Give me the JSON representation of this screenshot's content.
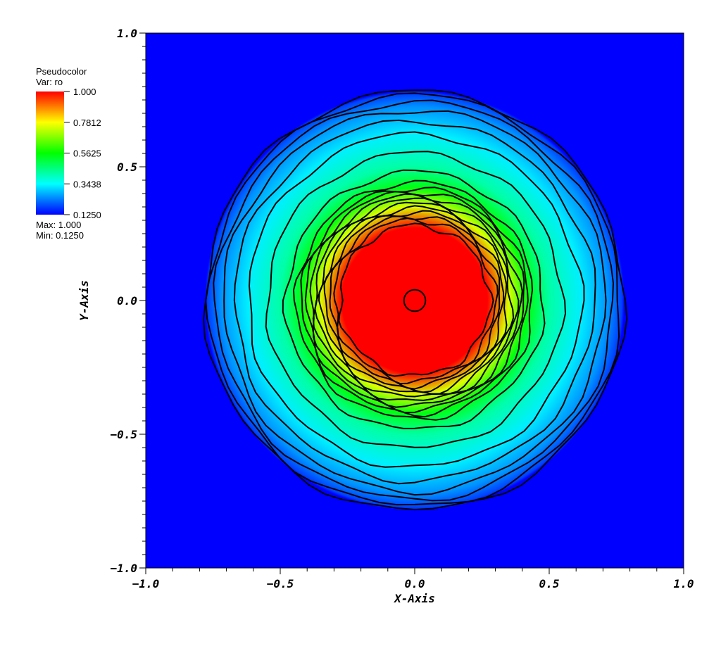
{
  "chart_data": {
    "type": "heatmap",
    "plot_kind": "pseudocolor-with-contours",
    "xlabel": "X-Axis",
    "ylabel": "Y-Axis",
    "xlim": [
      -1.0,
      1.0
    ],
    "ylim": [
      -1.0,
      1.0
    ],
    "x_ticks": [
      "-1.0",
      "-0.5",
      "0.0",
      "0.5",
      "1.0"
    ],
    "y_ticks": [
      "1.0",
      "0.5",
      "0.0",
      "-0.5",
      "-1.0"
    ],
    "field": {
      "shape": "radial",
      "center": [
        0.0,
        0.0
      ],
      "value_at_center": 1.0,
      "value_outside": 0.125,
      "radial_profile": [
        {
          "r": 0.0,
          "value": 1.0
        },
        {
          "r": 0.27,
          "value": 1.0
        },
        {
          "r": 0.35,
          "value": 0.75
        },
        {
          "r": 0.42,
          "value": 0.55
        },
        {
          "r": 0.5,
          "value": 0.42
        },
        {
          "r": 0.62,
          "value": 0.33
        },
        {
          "r": 0.72,
          "value": 0.25
        },
        {
          "r": 0.77,
          "value": 0.18
        },
        {
          "r": 0.78,
          "value": 0.125
        },
        {
          "r": 1.5,
          "value": 0.125
        }
      ],
      "contour_radii": [
        0.04,
        0.28,
        0.3,
        0.315,
        0.33,
        0.345,
        0.36,
        0.375,
        0.39,
        0.405,
        0.42,
        0.44,
        0.48,
        0.55,
        0.62,
        0.67,
        0.71,
        0.74,
        0.765,
        0.78
      ]
    },
    "legend": {
      "title": "Pseudocolor",
      "var_label": "Var: ro",
      "ticks": [
        "1.000",
        "0.7812",
        "0.5625",
        "0.3438",
        "0.1250"
      ],
      "max_label": "Max:  1.000",
      "min_label": "Min:  0.1250",
      "colormap": [
        "#ff0000",
        "#ffff00",
        "#00ff00",
        "#00ffff",
        "#0000ff"
      ]
    },
    "grid": false
  }
}
